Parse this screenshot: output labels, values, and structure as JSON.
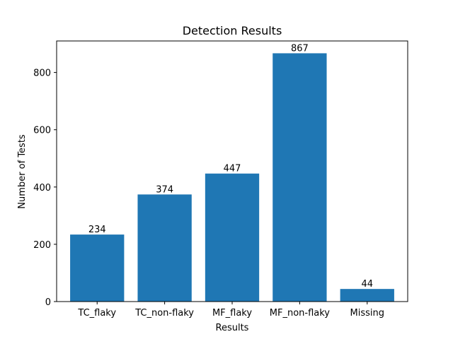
{
  "chart_data": {
    "type": "bar",
    "title": "Detection Results",
    "xlabel": "Results",
    "ylabel": "Number of Tests",
    "categories": [
      "TC_flaky",
      "TC_non-flaky",
      "MF_flaky",
      "MF_non-flaky",
      "Missing"
    ],
    "values": [
      234,
      374,
      447,
      867,
      44
    ],
    "data_labels": [
      "234",
      "374",
      "447",
      "867",
      "44"
    ],
    "ylim": [
      0,
      910
    ],
    "yticks": [
      0,
      200,
      400,
      600,
      800
    ],
    "ytick_labels": [
      "0",
      "200",
      "400",
      "600",
      "800"
    ],
    "grid": false,
    "legend": "none",
    "bar_color": "#1f77b4"
  }
}
